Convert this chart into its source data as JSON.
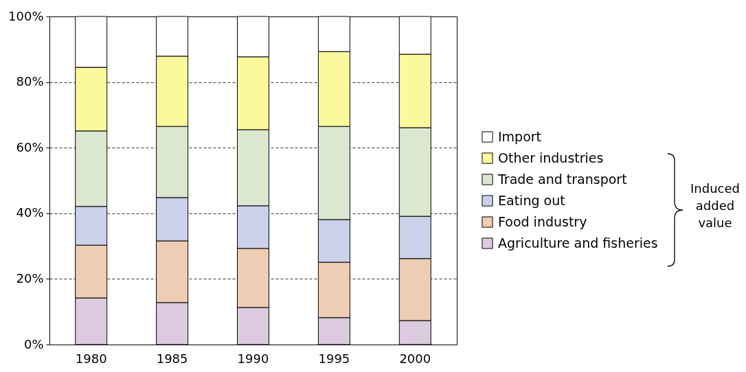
{
  "chart_data": {
    "type": "bar",
    "stacked": true,
    "categories": [
      "1980",
      "1985",
      "1990",
      "1995",
      "2000"
    ],
    "series": [
      {
        "name": "Agriculture and fisheries",
        "color": "#dccbdf",
        "values": [
          14.2,
          12.8,
          11.3,
          8.2,
          7.3
        ]
      },
      {
        "name": "Food industry",
        "color": "#edcdb3",
        "values": [
          16.1,
          18.8,
          18.0,
          16.9,
          18.9
        ]
      },
      {
        "name": "Eating out",
        "color": "#ccd1ea",
        "values": [
          11.8,
          13.2,
          13.0,
          13.0,
          12.9
        ]
      },
      {
        "name": "Trade and transport",
        "color": "#dbe8cf",
        "values": [
          23.0,
          21.7,
          23.2,
          28.4,
          27.0
        ]
      },
      {
        "name": "Other industries",
        "color": "#fcf89c",
        "values": [
          19.4,
          21.4,
          22.2,
          22.8,
          22.4
        ]
      },
      {
        "name": "Import",
        "color": "#ffffff",
        "values": [
          15.5,
          12.1,
          12.3,
          10.7,
          11.5
        ]
      }
    ],
    "ylim": [
      0,
      100
    ],
    "yticks": [
      {
        "value": 0,
        "label": "0%"
      },
      {
        "value": 20,
        "label": "20%"
      },
      {
        "value": 40,
        "label": "40%"
      },
      {
        "value": 60,
        "label": "60%"
      },
      {
        "value": 80,
        "label": "80%"
      },
      {
        "value": 100,
        "label": "100%"
      }
    ],
    "grid": "y",
    "legend": "right",
    "annotations": [
      "Induced added value"
    ]
  }
}
